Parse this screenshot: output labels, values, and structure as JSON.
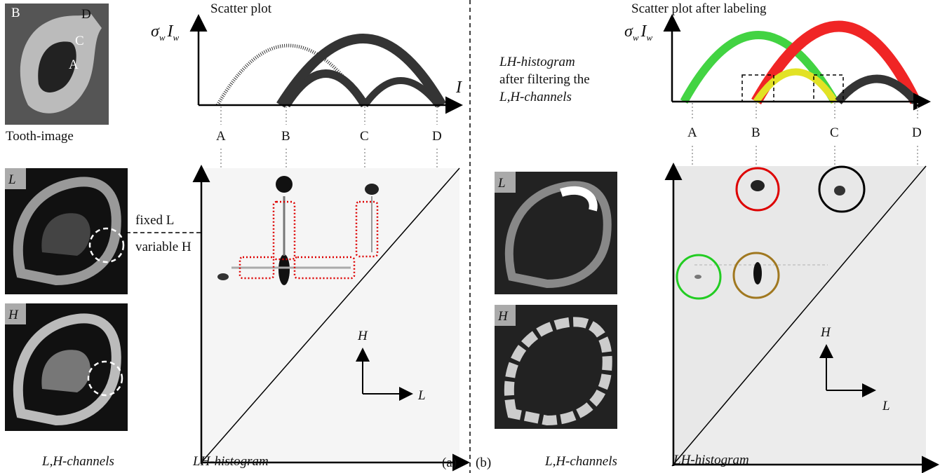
{
  "panel_a": {
    "tooth_image": {
      "labels": [
        "B",
        "D",
        "C",
        "A"
      ],
      "caption": "Tooth-image"
    },
    "scatter_plot": {
      "title": "Scatter plot",
      "y_label": [
        "σ",
        "w",
        "I",
        "w"
      ],
      "x_label": "I",
      "points": [
        "A",
        "B",
        "C",
        "D"
      ]
    },
    "channels": {
      "l_label": "L",
      "h_label": "H",
      "caption": "L,H-channels"
    },
    "annotation": [
      "fixed L",
      "variable H"
    ],
    "histogram": {
      "axis_h": "H",
      "axis_l": "L",
      "caption": "LH-histogram"
    },
    "label": "(a)"
  },
  "panel_b": {
    "description": [
      "LH-histogram",
      "after filtering the",
      "L,H-channels"
    ],
    "scatter_plot": {
      "title": "Scatter plot after labeling",
      "y_label": [
        "σ",
        "w",
        "I",
        "w"
      ],
      "points": [
        "A",
        "B",
        "C",
        "D"
      ]
    },
    "channels": {
      "l_label": "L",
      "h_label": "H",
      "caption": "L,H-channels"
    },
    "histogram": {
      "axis_h": "H",
      "axis_l": "L",
      "caption": "LH-histogram"
    },
    "label": "(b)"
  }
}
